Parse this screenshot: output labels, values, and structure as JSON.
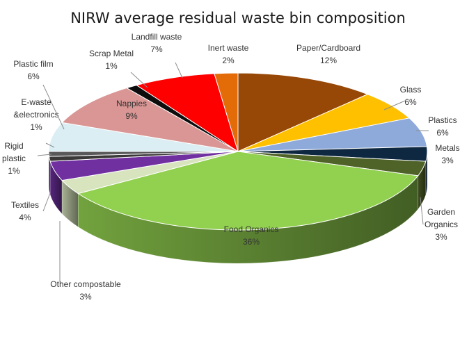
{
  "chart_data": {
    "type": "pie",
    "title": "NIRW average residual waste bin composition",
    "three_d": true,
    "legend": "none",
    "slices": [
      {
        "name": "Paper/Cardboard",
        "label": "Paper/Cardboard",
        "value_label": "12%",
        "value": 12,
        "color": "#974706"
      },
      {
        "name": "Glass",
        "label": "Glass",
        "value_label": "6%",
        "value": 6,
        "color": "#FFC000"
      },
      {
        "name": "Plastics",
        "label": "Plastics",
        "value_label": "6%",
        "value": 6,
        "color": "#8EAADB"
      },
      {
        "name": "Metals",
        "label": "Metals",
        "value_label": "3%",
        "value": 3,
        "color": "#0E2841"
      },
      {
        "name": "Garden Organics",
        "label": "Garden\nOrganics",
        "value_label": "3%",
        "value": 3,
        "color": "#4F6228"
      },
      {
        "name": "Food Organics",
        "label": "Food Organics",
        "value_label": "36%",
        "value": 36,
        "color": "#92D050"
      },
      {
        "name": "Other compostable",
        "label": "Other compostable",
        "value_label": "3%",
        "value": 3,
        "color": "#D7E4BD"
      },
      {
        "name": "Textiles",
        "label": "Textiles",
        "value_label": "4%",
        "value": 4,
        "color": "#7030A0"
      },
      {
        "name": "Rigid plastic",
        "label": "Rigid\nplastic",
        "value_label": "1%",
        "value": 1,
        "color": "#3B3838"
      },
      {
        "name": "E-waste &electronics",
        "label": "E-waste\n&electronics",
        "value_label": "1%",
        "value": 1,
        "color": "#595959"
      },
      {
        "name": "Plastic film",
        "label": "Plastic film",
        "value_label": "6%",
        "value": 6,
        "color": "#DAEEF3"
      },
      {
        "name": "Nappies",
        "label": "Nappies",
        "value_label": "9%",
        "value": 9,
        "color": "#D99694"
      },
      {
        "name": "Scrap Metal",
        "label": "Scrap Metal",
        "value_label": "1%",
        "value": 1,
        "color": "#0D0D0D"
      },
      {
        "name": "Landfill waste",
        "label": "Landfill waste",
        "value_label": "7%",
        "value": 7,
        "color": "#FF0000"
      },
      {
        "name": "Inert waste",
        "label": "Inert waste",
        "value_label": "2%",
        "value": 2,
        "color": "#E36C09"
      }
    ]
  }
}
